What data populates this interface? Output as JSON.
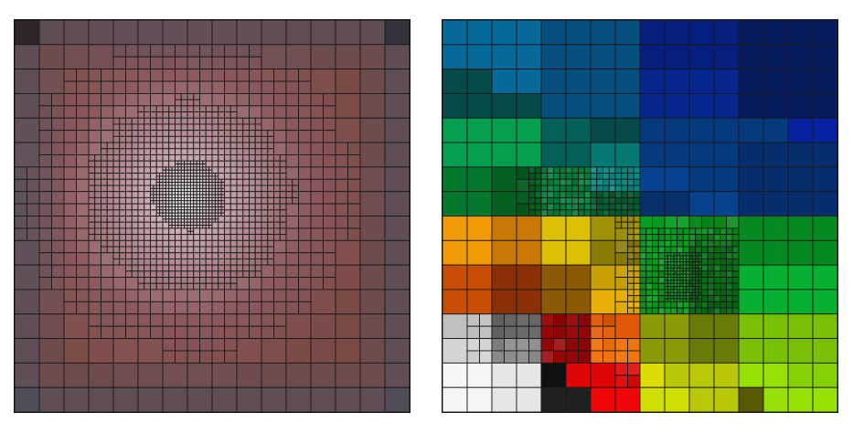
{
  "figure": {
    "left": {
      "grid": 16,
      "corners": [
        "#050505",
        "#121c26",
        "#444a5a",
        "#4a4a5a"
      ],
      "edge_tint": "#3f5266",
      "base": "#7a4a46",
      "mid": "#8c5a5d",
      "glow": "#c8a6ae",
      "highlight": "#eef6f8",
      "focus": [
        0.43,
        0.45
      ],
      "line": "#1a1a1a"
    },
    "right": {
      "grid": 16,
      "line": "#1a1a1a",
      "row_colors": [
        [
          "#06699a",
          "#06699a",
          "#06699a",
          "#06699a",
          "#064e7e",
          "#064e7e",
          "#064e7e",
          "#064e7e",
          "#061e7e",
          "#061e7e",
          "#061e7e",
          "#061e7e",
          "#061a5e",
          "#061a5e",
          "#061a5e",
          "#061a5e"
        ],
        [
          "#06699a",
          "#06699a",
          "#06699a",
          "#06699a",
          "#064e7e",
          "#064e7e",
          "#064e7e",
          "#064e7e",
          "#061e7e",
          "#061e7e",
          "#061e7e",
          "#061e7e",
          "#061a5e",
          "#061a5e",
          "#061a5e",
          "#061a5e"
        ],
        [
          "#044b4a",
          "#044b4a",
          "#06699a",
          "#06699a",
          "#064e7e",
          "#064e7e",
          "#064e7e",
          "#064e7e",
          "#06268e",
          "#06268e",
          "#06268e",
          "#06268e",
          "#061a5e",
          "#061a5e",
          "#061a5e",
          "#061a5e"
        ],
        [
          "#044b4a",
          "#044b4a",
          "#044b4a",
          "#044b4a",
          "#064e7e",
          "#064e7e",
          "#064e7e",
          "#064e7e",
          "#06268e",
          "#06268e",
          "#06268e",
          "#06268e",
          "#061a5e",
          "#061a5e",
          "#061a5e",
          "#061a5e"
        ],
        [
          "#04a050",
          "#04a050",
          "#04a050",
          "#04a050",
          "#06605a",
          "#06605a",
          "#044b4a",
          "#044b4a",
          "#063a7e",
          "#063a7e",
          "#063a7e",
          "#063a7e",
          "#063a7e",
          "#063a7e",
          "#0622a0",
          "#0622a0"
        ],
        [
          "#04a050",
          "#04a050",
          "#04a050",
          "#04a050",
          "#06605a",
          "#06605a",
          "#067a72",
          "#067a72",
          "#063a7e",
          "#063a7e",
          "#063a7e",
          "#063a7e",
          "#062e6e",
          "#062e6e",
          "#062e6e",
          "#062e6e"
        ],
        [
          "#04782c",
          "#04782c",
          "#045f20",
          "#045f20",
          "#04803a",
          "#04803a",
          "#068a84",
          "#068a84",
          "#06428e",
          "#06428e",
          "#063a7e",
          "#063a7e",
          "#062e6e",
          "#062e6e",
          "#062e6e",
          "#062e6e"
        ],
        [
          "#04782c",
          "#04782c",
          "#045f20",
          "#045f20",
          "#04803a",
          "#04803a",
          "#045f30",
          "#045f30",
          "#06306a",
          "#06306a",
          "#06428e",
          "#06428e",
          "#062e6e",
          "#062e6e",
          "#062e6e",
          "#062e6e"
        ],
        [
          "#f09a06",
          "#f09a06",
          "#c87806",
          "#c87806",
          "#dcc006",
          "#dcc006",
          "#a09006",
          "#a09006",
          "#06a020",
          "#06a020",
          "#068a18",
          "#068a18",
          "#048a20",
          "#048a20",
          "#048a20",
          "#048a20"
        ],
        [
          "#f09a06",
          "#f09a06",
          "#c87806",
          "#c87806",
          "#dcc006",
          "#dcc006",
          "#8a7a06",
          "#8a7a06",
          "#06a020",
          "#06a020",
          "#067014",
          "#067014",
          "#048a20",
          "#048a20",
          "#048a20",
          "#048a20"
        ],
        [
          "#c84e06",
          "#c84e06",
          "#8a3006",
          "#8a3006",
          "#8a5a06",
          "#8a5a06",
          "#c8a006",
          "#c8a006",
          "#069a18",
          "#069a18",
          "#067014",
          "#067014",
          "#06b030",
          "#06b030",
          "#06b030",
          "#06b030"
        ],
        [
          "#c84e06",
          "#c84e06",
          "#8a3006",
          "#8a3006",
          "#8a5a06",
          "#8a5a06",
          "#e8b006",
          "#e8b006",
          "#069a18",
          "#069a18",
          "#066a14",
          "#066a14",
          "#06b030",
          "#06b030",
          "#06b030",
          "#06b030"
        ],
        [
          "#c0c0c0",
          "#c0c0c0",
          "#6a6a6a",
          "#6a6a6a",
          "#980606",
          "#980606",
          "#e05a06",
          "#e05a06",
          "#8a9a06",
          "#8a9a06",
          "#6a7a06",
          "#6a7a06",
          "#7ac006",
          "#7ac006",
          "#7ac006",
          "#7ac006"
        ],
        [
          "#d4d4d4",
          "#d4d4d4",
          "#8a8a8a",
          "#8a8a8a",
          "#980606",
          "#980606",
          "#f07006",
          "#f07006",
          "#8a9a06",
          "#8a9a06",
          "#6a7a06",
          "#6a7a06",
          "#7ac006",
          "#7ac006",
          "#7ac006",
          "#7ac006"
        ],
        [
          "#f6f6f6",
          "#f6f6f6",
          "#e6e6e6",
          "#e6e6e6",
          "#101010",
          "#e00606",
          "#e00606",
          "#e00606",
          "#dcdc06",
          "#b8c806",
          "#b8c806",
          "#b8c806",
          "#96e006",
          "#96e006",
          "#86d006",
          "#86d006"
        ],
        [
          "#f6f6f6",
          "#f6f6f6",
          "#e6e6e6",
          "#e6e6e6",
          "#202020",
          "#202020",
          "#f00606",
          "#f00606",
          "#d0e006",
          "#d0e006",
          "#b8c806",
          "#b8c806",
          "#5a5a06",
          "#96e006",
          "#96e006",
          "#96e006"
        ]
      ],
      "refine": [
        {
          "c0": 3.5,
          "c1": 8,
          "r0": 6,
          "r1": 8.5,
          "depth": 2
        },
        {
          "c0": 7.5,
          "c1": 12,
          "r0": 8.5,
          "r1": 12.5,
          "depth": 2
        },
        {
          "c0": 9,
          "c1": 10.5,
          "r0": 9.5,
          "r1": 11.5,
          "depth": 3
        },
        {
          "c0": 4,
          "c1": 7.5,
          "r0": 12,
          "r1": 14.5,
          "depth": 1
        },
        {
          "c0": 7.5,
          "c1": 8.5,
          "r0": 13,
          "r1": 15,
          "depth": 1
        },
        {
          "c0": 1,
          "c1": 4,
          "r0": 12,
          "r1": 14,
          "depth": 1
        }
      ]
    }
  }
}
